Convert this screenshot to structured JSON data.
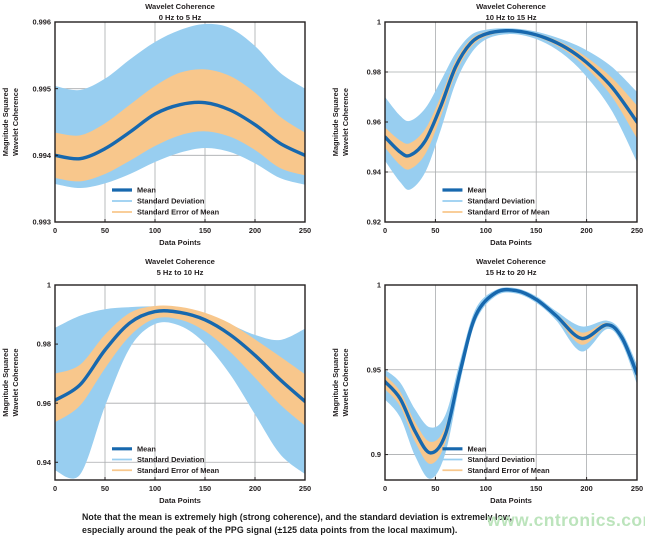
{
  "figure": {
    "note_line1": "Note that the mean is extremely high (strong coherence), and the standard deviation is extremely low,",
    "note_line2": "especially around the peak of the PPG signal (±125 data points from the local maximum).",
    "watermark": "www.cntronics.com"
  },
  "colors": {
    "mean": "#1768AE",
    "std_dev_fill": "#98CEF0",
    "sem_fill": "#F8C78C",
    "grid": "#A9ABAE",
    "axis": "#231F20",
    "text": "#231F20",
    "watermark": "#BCE4BC",
    "plot_bg": "#FFFFFF"
  },
  "legend": [
    "Mean",
    "Standard Deviation",
    "Standard Error of Mean"
  ],
  "chart_data": [
    {
      "type": "line",
      "title": "Wavelet Coherence",
      "subtitle": "0 Hz to 5 Hz",
      "xlabel": "Data Points",
      "ylabel": [
        "Magnitude Squared",
        "Wavelet Coherence"
      ],
      "xlim": [
        0,
        250
      ],
      "ylim": [
        0.993,
        0.996
      ],
      "x_ticks": [
        0,
        50,
        100,
        150,
        200,
        250
      ],
      "y_ticks": [
        0.993,
        0.994,
        0.995,
        0.996
      ],
      "y_tick_labels": [
        "0.993",
        "0.994",
        "0.995",
        "0.996"
      ],
      "grid": true,
      "legend_position": "inside-bottom-left",
      "series": {
        "x": [
          0,
          25,
          50,
          75,
          100,
          125,
          150,
          175,
          200,
          225,
          250
        ],
        "mean": [
          0.994,
          0.99395,
          0.9941,
          0.99435,
          0.99462,
          0.99476,
          0.99479,
          0.99468,
          0.99446,
          0.99418,
          0.994
        ],
        "sd_low": [
          0.99357,
          0.99351,
          0.99358,
          0.99372,
          0.9939,
          0.99404,
          0.99411,
          0.99405,
          0.99388,
          0.99366,
          0.99356
        ],
        "sd_high": [
          0.99504,
          0.99498,
          0.99515,
          0.99544,
          0.9957,
          0.99588,
          0.99597,
          0.99591,
          0.99564,
          0.99524,
          0.995
        ],
        "sem_low": [
          0.99366,
          0.99361,
          0.99372,
          0.99392,
          0.99414,
          0.9943,
          0.99436,
          0.99428,
          0.99408,
          0.99381,
          0.9937
        ],
        "sem_high": [
          0.99434,
          0.9943,
          0.99448,
          0.99476,
          0.99504,
          0.99524,
          0.99529,
          0.99519,
          0.99494,
          0.99458,
          0.99434
        ]
      }
    },
    {
      "type": "line",
      "title": "Wavelet Coherence",
      "subtitle": "10 Hz to 15 Hz",
      "xlabel": "Data Points",
      "ylabel": [
        "Magnitude Squared",
        "Wavelet Coherence"
      ],
      "xlim": [
        0,
        250
      ],
      "ylim": [
        0.92,
        1.0
      ],
      "x_ticks": [
        0,
        50,
        100,
        150,
        200,
        250
      ],
      "y_ticks": [
        0.92,
        0.94,
        0.96,
        0.98,
        1.0
      ],
      "y_tick_labels": [
        "0.92",
        "0.94",
        "0.96",
        "0.98",
        "1"
      ],
      "grid": true,
      "legend_position": "inside-bottom-left",
      "series": {
        "x": [
          0,
          15,
          25,
          40,
          55,
          70,
          85,
          100,
          120,
          140,
          160,
          180,
          200,
          225,
          250
        ],
        "mean": [
          0.954,
          0.948,
          0.9467,
          0.9525,
          0.966,
          0.982,
          0.9915,
          0.9952,
          0.9965,
          0.9958,
          0.9935,
          0.9896,
          0.9838,
          0.974,
          0.96
        ],
        "sd_low": [
          0.9445,
          0.936,
          0.933,
          0.94,
          0.9565,
          0.9755,
          0.9872,
          0.993,
          0.9951,
          0.9944,
          0.9914,
          0.9861,
          0.9781,
          0.9645,
          0.944
        ],
        "sd_high": [
          0.97,
          0.9625,
          0.9605,
          0.9655,
          0.9762,
          0.9875,
          0.9947,
          0.9969,
          0.9975,
          0.9969,
          0.9951,
          0.9924,
          0.9887,
          0.9821,
          0.972
        ],
        "sem_low": [
          0.9498,
          0.9428,
          0.9412,
          0.9472,
          0.9618,
          0.9792,
          0.9898,
          0.9942,
          0.9959,
          0.9951,
          0.9926,
          0.9882,
          0.9816,
          0.9702,
          0.9534
        ],
        "sem_high": [
          0.9578,
          0.9526,
          0.9516,
          0.9572,
          0.9698,
          0.9845,
          0.993,
          0.996,
          0.997,
          0.9964,
          0.9943,
          0.9908,
          0.9859,
          0.9777,
          0.9666
        ]
      }
    },
    {
      "type": "line",
      "title": "Wavelet Coherence",
      "subtitle": "5 Hz to 10 Hz",
      "xlabel": "Data Points",
      "ylabel": [
        "Magnitude Squared",
        "Wavelet Coherence"
      ],
      "xlim": [
        0,
        250
      ],
      "ylim": [
        0.934,
        1.0
      ],
      "x_ticks": [
        0,
        50,
        100,
        150,
        200,
        250
      ],
      "y_ticks": [
        0.94,
        0.96,
        0.98,
        1.0
      ],
      "y_tick_labels": [
        "0.94",
        "0.96",
        "0.98",
        "1"
      ],
      "grid": true,
      "legend_position": "inside-bottom-left",
      "series": {
        "x": [
          0,
          25,
          50,
          75,
          100,
          125,
          150,
          175,
          200,
          225,
          250
        ],
        "mean": [
          0.961,
          0.9662,
          0.978,
          0.9872,
          0.991,
          0.9907,
          0.9882,
          0.9832,
          0.9762,
          0.968,
          0.9606
        ],
        "sd_low": [
          0.9372,
          0.9358,
          0.959,
          0.9788,
          0.9868,
          0.9862,
          0.9802,
          0.9698,
          0.9562,
          0.9428,
          0.936
        ],
        "sd_high": [
          0.9855,
          0.9896,
          0.9918,
          0.9925,
          0.9928,
          0.9925,
          0.9904,
          0.9867,
          0.9831,
          0.9814,
          0.9852
        ],
        "sem_low": [
          0.9535,
          0.9592,
          0.9718,
          0.9828,
          0.9886,
          0.9883,
          0.9844,
          0.9774,
          0.9686,
          0.9596,
          0.9524
        ],
        "sem_high": [
          0.97,
          0.973,
          0.9832,
          0.9906,
          0.9929,
          0.9926,
          0.9906,
          0.987,
          0.9816,
          0.9758,
          0.9698
        ]
      }
    },
    {
      "type": "line",
      "title": "Wavelet Coherence",
      "subtitle": "15 Hz to 20 Hz",
      "xlabel": "Data Points",
      "ylabel": [
        "Magnitude Squared",
        "Wavelet Coherence"
      ],
      "xlim": [
        0,
        250
      ],
      "ylim": [
        0.885,
        1.0
      ],
      "x_ticks": [
        0,
        50,
        100,
        150,
        200,
        250
      ],
      "y_ticks": [
        0.9,
        0.95,
        1.0
      ],
      "y_tick_labels": [
        "0.9",
        "0.95",
        "1"
      ],
      "grid": true,
      "legend_position": "inside-bottom-left",
      "series": {
        "x": [
          0,
          15,
          30,
          45,
          60,
          75,
          90,
          110,
          130,
          150,
          170,
          195,
          220,
          235,
          250
        ],
        "mean": [
          0.943,
          0.933,
          0.9135,
          0.901,
          0.912,
          0.95,
          0.982,
          0.9955,
          0.9967,
          0.9915,
          0.9818,
          0.9685,
          0.9765,
          0.969,
          0.9475
        ],
        "sd_low": [
          0.9325,
          0.922,
          0.899,
          0.8857,
          0.901,
          0.944,
          0.9785,
          0.9935,
          0.995,
          0.9895,
          0.979,
          0.9608,
          0.974,
          0.9655,
          0.9415
        ],
        "sd_high": [
          0.95,
          0.9425,
          0.9265,
          0.916,
          0.9235,
          0.9565,
          0.986,
          0.9971,
          0.9981,
          0.9934,
          0.9845,
          0.9756,
          0.979,
          0.9722,
          0.953
        ],
        "sem_low": [
          0.9385,
          0.9285,
          0.9075,
          0.8945,
          0.9072,
          0.9475,
          0.9805,
          0.9946,
          0.996,
          0.9906,
          0.9806,
          0.9648,
          0.9754,
          0.9674,
          0.9448
        ],
        "sem_high": [
          0.9468,
          0.9372,
          0.919,
          0.9075,
          0.9166,
          0.9528,
          0.9838,
          0.9962,
          0.9974,
          0.9923,
          0.983,
          0.972,
          0.9777,
          0.9705,
          0.95
        ]
      }
    }
  ]
}
